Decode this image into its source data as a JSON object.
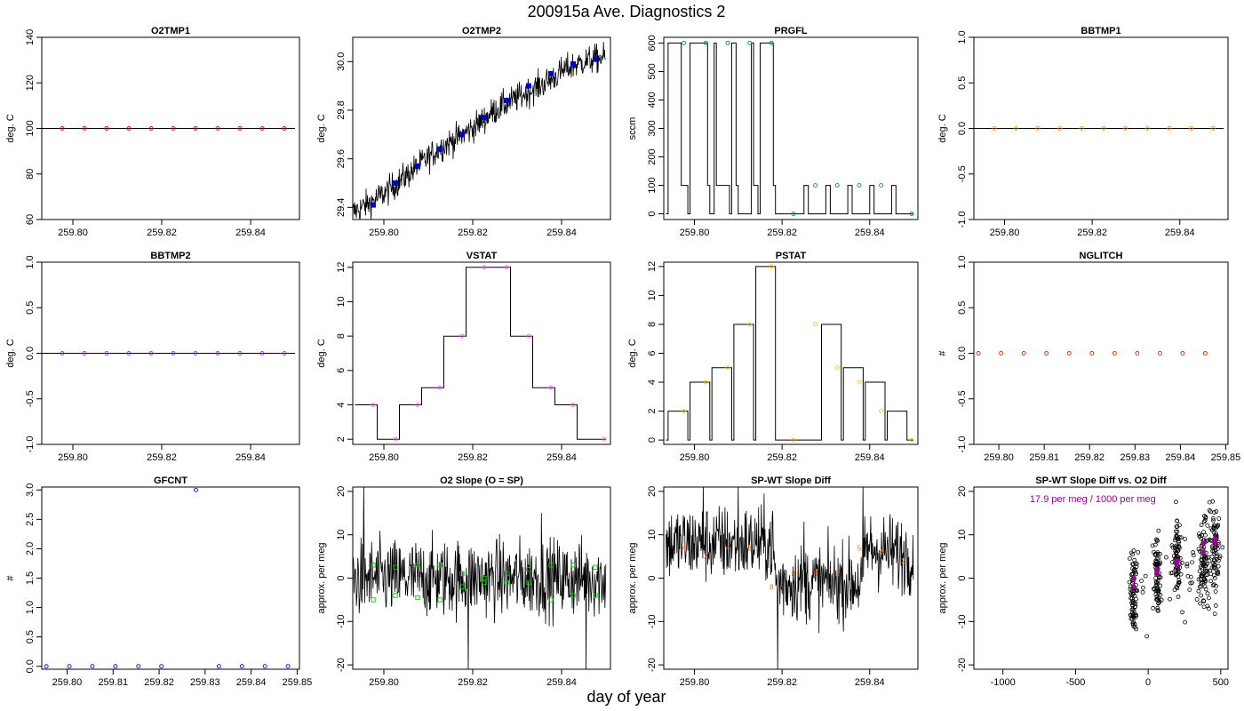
{
  "page": {
    "title": "200915a   Ave. Diagnostics 2",
    "xlabel": "day of year"
  },
  "chart_data": [
    {
      "type": "line",
      "title": "O2TMP1",
      "ylabel": "deg. C",
      "xlim": [
        259.793,
        259.851
      ],
      "ylim": [
        60,
        140
      ],
      "xticks": [
        259.8,
        259.82,
        259.84
      ],
      "xtick_labels": [
        "259.80",
        "259.82",
        "259.84"
      ],
      "yticks": [
        60,
        80,
        100,
        120,
        140
      ],
      "ytick_labels": [
        "60",
        "80",
        "100",
        "120",
        "140"
      ],
      "line_color": "#000000",
      "marker_color": "#ff0000",
      "series": [
        {
          "x": [
            259.793,
            259.85
          ],
          "y": [
            100,
            100
          ]
        }
      ],
      "markers": {
        "x": [
          259.7976,
          259.8026,
          259.8076,
          259.8126,
          259.8176,
          259.8226,
          259.8276,
          259.8326,
          259.8376,
          259.8426,
          259.8476
        ],
        "y": [
          100,
          100,
          100,
          100,
          100,
          100,
          100,
          100,
          100,
          100,
          100
        ]
      }
    },
    {
      "type": "line",
      "title": "O2TMP2",
      "ylabel": "deg. C",
      "xlim": [
        259.793,
        259.851
      ],
      "ylim": [
        29.35,
        30.1
      ],
      "xticks": [
        259.8,
        259.82,
        259.84
      ],
      "xtick_labels": [
        "259.80",
        "259.82",
        "259.84"
      ],
      "yticks": [
        29.4,
        29.6,
        29.8,
        30.0
      ],
      "ytick_labels": [
        "29.4",
        "29.6",
        "29.8",
        "30.0"
      ],
      "line_color": "#000000",
      "marker_color": "#0000cc",
      "series": [
        {
          "x": [
            259.793,
            259.797,
            259.801,
            259.805,
            259.809,
            259.813,
            259.817,
            259.821,
            259.825,
            259.829,
            259.833,
            259.837,
            259.841,
            259.845,
            259.85
          ],
          "y": [
            29.38,
            29.42,
            29.47,
            29.53,
            29.59,
            29.65,
            29.69,
            29.74,
            29.8,
            29.84,
            29.88,
            29.92,
            29.97,
            30.0,
            30.02
          ]
        }
      ],
      "noise": 0.03,
      "markers": {
        "x": [
          259.7976,
          259.8026,
          259.8076,
          259.8126,
          259.8176,
          259.8226,
          259.8276,
          259.8326,
          259.8376,
          259.8426,
          259.8476
        ],
        "y": [
          29.41,
          29.5,
          29.57,
          29.64,
          29.7,
          29.77,
          29.84,
          29.9,
          29.95,
          29.99,
          30.01
        ]
      }
    },
    {
      "type": "step",
      "title": "PRGFL",
      "ylabel": "sccm",
      "xlim": [
        259.793,
        259.851
      ],
      "ylim": [
        -20,
        620
      ],
      "xticks": [
        259.8,
        259.82,
        259.84
      ],
      "xtick_labels": [
        "259.80",
        "259.82",
        "259.84"
      ],
      "yticks": [
        0,
        100,
        200,
        300,
        400,
        500,
        600
      ],
      "ytick_labels": [
        "0",
        "100",
        "200",
        "300",
        "400",
        "500",
        "600"
      ],
      "line_color": "#000000",
      "marker_color": "#009933",
      "series": [
        {
          "x": [
            259.7935,
            259.794,
            259.797,
            259.7985,
            259.799,
            259.803,
            259.8035,
            259.8045,
            259.805,
            259.808,
            259.8085,
            259.8095,
            259.81,
            259.813,
            259.8135,
            259.8145,
            259.815,
            259.818,
            259.8185,
            259.82,
            259.825,
            259.826,
            259.83,
            259.831,
            259.835,
            259.836,
            259.84,
            259.841,
            259.845,
            259.846,
            259.85
          ],
          "y": [
            0,
            600,
            100,
            0,
            600,
            100,
            0,
            600,
            100,
            0,
            600,
            100,
            0,
            600,
            100,
            0,
            600,
            100,
            0,
            0,
            100,
            0,
            100,
            0,
            100,
            0,
            100,
            0,
            100,
            0,
            0
          ]
        }
      ],
      "markers": {
        "x": [
          259.7976,
          259.8026,
          259.8076,
          259.8126,
          259.8176,
          259.8226,
          259.8276,
          259.8326,
          259.8376,
          259.8426,
          259.8496
        ],
        "y": [
          600,
          600,
          600,
          600,
          600,
          0,
          100,
          100,
          100,
          100,
          0
        ]
      }
    },
    {
      "type": "line",
      "title": "BBTMP1",
      "ylabel": "deg. C",
      "xlim": [
        259.793,
        259.851
      ],
      "ylim": [
        -1,
        1
      ],
      "xticks": [
        259.8,
        259.82,
        259.84
      ],
      "xtick_labels": [
        "259.80",
        "259.82",
        "259.84"
      ],
      "yticks": [
        -1.0,
        -0.5,
        0.0,
        0.5,
        1.0
      ],
      "ytick_labels": [
        "-1.0",
        "-0.5",
        "0.0",
        "0.5",
        "1.0"
      ],
      "line_color": "#000000",
      "marker_color": "#ff9900",
      "series": [
        {
          "x": [
            259.793,
            259.85
          ],
          "y": [
            0,
            0
          ]
        }
      ],
      "markers": {
        "x": [
          259.7976,
          259.8026,
          259.8076,
          259.8126,
          259.8176,
          259.8226,
          259.8276,
          259.8326,
          259.8376,
          259.8426,
          259.8476
        ],
        "y": [
          0,
          0,
          0,
          0,
          0,
          0,
          0,
          0,
          0,
          0,
          0
        ]
      }
    },
    {
      "type": "line",
      "title": "BBTMP2",
      "ylabel": "deg. C",
      "xlim": [
        259.793,
        259.851
      ],
      "ylim": [
        -1,
        1
      ],
      "xticks": [
        259.8,
        259.82,
        259.84
      ],
      "xtick_labels": [
        "259.80",
        "259.82",
        "259.84"
      ],
      "yticks": [
        -1.0,
        -0.5,
        0.0,
        0.5,
        1.0
      ],
      "ytick_labels": [
        "-1.0",
        "-0.5",
        "0.0",
        "0.5",
        "1.0"
      ],
      "line_color": "#000000",
      "marker_color": "#9933ff",
      "series": [
        {
          "x": [
            259.793,
            259.85
          ],
          "y": [
            0,
            0
          ]
        }
      ],
      "markers": {
        "x": [
          259.7976,
          259.8026,
          259.8076,
          259.8126,
          259.8176,
          259.8226,
          259.8276,
          259.8326,
          259.8376,
          259.8426,
          259.8476
        ],
        "y": [
          0,
          0,
          0,
          0,
          0,
          0,
          0,
          0,
          0,
          0,
          0
        ]
      }
    },
    {
      "type": "step",
      "title": "VSTAT",
      "ylabel": "deg. C",
      "xlim": [
        259.793,
        259.851
      ],
      "ylim": [
        1.7,
        12.3
      ],
      "xticks": [
        259.8,
        259.82,
        259.84
      ],
      "xtick_labels": [
        "259.80",
        "259.82",
        "259.84"
      ],
      "yticks": [
        2,
        4,
        6,
        8,
        10,
        12
      ],
      "ytick_labels": [
        "2",
        "4",
        "6",
        "8",
        "10",
        "12"
      ],
      "line_color": "#000000",
      "marker_color": "#ff66ff",
      "series": [
        {
          "x": [
            259.7935,
            259.7985,
            259.8035,
            259.8085,
            259.8135,
            259.8185,
            259.8235,
            259.8285,
            259.8335,
            259.8385,
            259.8435,
            259.8485,
            259.85
          ],
          "y": [
            4,
            2,
            4,
            5,
            8,
            12,
            12,
            8,
            5,
            4,
            2,
            2,
            2
          ]
        }
      ],
      "markers": {
        "x": [
          259.7976,
          259.8026,
          259.8076,
          259.8126,
          259.8176,
          259.8226,
          259.8276,
          259.8326,
          259.8376,
          259.8426,
          259.8496
        ],
        "y": [
          4,
          2,
          4,
          5,
          8,
          12,
          12,
          8,
          5,
          4,
          2
        ]
      }
    },
    {
      "type": "step",
      "title": "PSTAT",
      "ylabel": "deg. C",
      "xlim": [
        259.793,
        259.851
      ],
      "ylim": [
        -0.3,
        12.3
      ],
      "xticks": [
        259.8,
        259.82,
        259.84
      ],
      "xtick_labels": [
        "259.80",
        "259.82",
        "259.84"
      ],
      "yticks": [
        0,
        2,
        4,
        6,
        8,
        10,
        12
      ],
      "ytick_labels": [
        "0",
        "2",
        "4",
        "6",
        "8",
        "10",
        "12"
      ],
      "line_color": "#000000",
      "marker_color": "#ffcc00",
      "series": [
        {
          "x": [
            259.7935,
            259.794,
            259.7985,
            259.799,
            259.8035,
            259.804,
            259.8085,
            259.809,
            259.8135,
            259.814,
            259.8185,
            259.819,
            259.8235,
            259.824,
            259.8285,
            259.829,
            259.8335,
            259.834,
            259.8385,
            259.839,
            259.8435,
            259.844,
            259.8485,
            259.85
          ],
          "y": [
            0,
            2,
            0,
            4,
            0,
            5,
            0,
            8,
            0,
            12,
            0,
            0,
            0,
            0,
            0,
            8,
            0,
            5,
            0,
            4,
            0,
            2,
            0,
            0
          ]
        }
      ],
      "markers": {
        "x": [
          259.7976,
          259.8026,
          259.8076,
          259.8126,
          259.8176,
          259.8226,
          259.8276,
          259.8326,
          259.8376,
          259.8426,
          259.8496
        ],
        "y": [
          2,
          4,
          5,
          8,
          12,
          0,
          8,
          5,
          4,
          2,
          0
        ]
      }
    },
    {
      "type": "scatter",
      "title": "NGLITCH",
      "ylabel": "#",
      "xlim": [
        259.7945,
        259.8505
      ],
      "ylim": [
        -1,
        1
      ],
      "xticks": [
        259.8,
        259.81,
        259.82,
        259.83,
        259.84,
        259.85
      ],
      "xtick_labels": [
        "259.80",
        "259.81",
        "259.82",
        "259.83",
        "259.84",
        "259.85"
      ],
      "yticks": [
        -1.0,
        -0.5,
        0.0,
        0.5,
        1.0
      ],
      "ytick_labels": [
        "-1.0",
        "-0.5",
        "0.0",
        "0.5",
        "1.0"
      ],
      "marker_color": "#cc3300",
      "markers": {
        "x": [
          259.7955,
          259.8005,
          259.8055,
          259.8105,
          259.8155,
          259.8205,
          259.8255,
          259.8305,
          259.8355,
          259.8405,
          259.8455
        ],
        "y": [
          0,
          0,
          0,
          0,
          0,
          0,
          0,
          0,
          0,
          0,
          0
        ]
      }
    },
    {
      "type": "scatter",
      "title": "GFCNT",
      "ylabel": "#",
      "xlim": [
        259.7945,
        259.8505
      ],
      "ylim": [
        -0.05,
        3.05
      ],
      "xticks": [
        259.8,
        259.81,
        259.82,
        259.83,
        259.84,
        259.85
      ],
      "xtick_labels": [
        "259.80",
        "259.81",
        "259.82",
        "259.83",
        "259.84",
        "259.85"
      ],
      "yticks": [
        0.0,
        0.5,
        1.0,
        1.5,
        2.0,
        2.5,
        3.0
      ],
      "ytick_labels": [
        "0.0",
        "0.5",
        "1.0",
        "1.5",
        "2.0",
        "2.5",
        "3.0"
      ],
      "marker_color": "#0000ff",
      "markers": {
        "x": [
          259.7955,
          259.8005,
          259.8055,
          259.8105,
          259.8155,
          259.8205,
          259.828,
          259.833,
          259.838,
          259.843,
          259.848
        ],
        "y": [
          0,
          0,
          0,
          0,
          0,
          0,
          3,
          0,
          0,
          0,
          0
        ]
      }
    },
    {
      "type": "line",
      "title": "O2 Slope (O = SP)",
      "ylabel": "approx. per meg",
      "xlim": [
        259.793,
        259.851
      ],
      "ylim": [
        -21,
        21
      ],
      "xticks": [
        259.8,
        259.82,
        259.84
      ],
      "xtick_labels": [
        "259.80",
        "259.82",
        "259.84"
      ],
      "yticks": [
        -20,
        -10,
        0,
        10,
        20
      ],
      "ytick_labels": [
        "-20",
        "-10",
        "0",
        "10",
        "20"
      ],
      "line_color": "#000000",
      "marker_color": "#00cc00",
      "series": [
        {
          "x": [
            259.793,
            259.85
          ],
          "y": [
            0,
            0
          ]
        }
      ],
      "noise": 4.5,
      "spikes": [
        {
          "x": 259.7955,
          "y": 22
        },
        {
          "x": 259.819,
          "y": -22
        },
        {
          "x": 259.8455,
          "y": -22
        },
        {
          "x": 259.8355,
          "y": 15
        }
      ],
      "markers": {
        "x": [
          259.7976,
          259.7976,
          259.8026,
          259.8026,
          259.8076,
          259.8076,
          259.8126,
          259.8126,
          259.8176,
          259.8176,
          259.8226,
          259.8226,
          259.8276,
          259.8276,
          259.8326,
          259.8326,
          259.8376,
          259.8376,
          259.8426,
          259.8426,
          259.8476,
          259.8476
        ],
        "y": [
          3,
          -5,
          2.5,
          -4,
          3,
          -4.5,
          3,
          -5,
          1,
          -2,
          0,
          -1,
          1,
          -1,
          2,
          -1,
          3,
          -5,
          3,
          -4,
          2.5,
          -4
        ]
      }
    },
    {
      "type": "line",
      "title": "SP-WT Slope Diff",
      "ylabel": "approx. per meg",
      "xlim": [
        259.793,
        259.851
      ],
      "ylim": [
        -21,
        21
      ],
      "xticks": [
        259.8,
        259.82,
        259.84
      ],
      "xtick_labels": [
        "259.80",
        "259.82",
        "259.84"
      ],
      "yticks": [
        -20,
        -10,
        0,
        10,
        20
      ],
      "ytick_labels": [
        "-20",
        "-10",
        "0",
        "10",
        "20"
      ],
      "line_color": "#000000",
      "marker_color": "#ff6600",
      "series": [
        {
          "x": [
            259.7935,
            259.818,
            259.8185,
            259.8385,
            259.839,
            259.85
          ],
          "y": [
            8,
            8,
            -1,
            -1,
            7,
            5
          ]
        }
      ],
      "noise": 4.5,
      "spikes": [
        {
          "x": 259.802,
          "y": 22
        },
        {
          "x": 259.81,
          "y": 22
        },
        {
          "x": 259.819,
          "y": -22
        },
        {
          "x": 259.8385,
          "y": 22
        },
        {
          "x": 259.825,
          "y": 13
        }
      ],
      "marker_labels": {
        "x": [
          259.7976,
          259.8026,
          259.8076,
          259.8126,
          259.8176,
          259.8226,
          259.8276,
          259.8326,
          259.8376,
          259.8426,
          259.8476
        ],
        "y": [
          7,
          5,
          7,
          7,
          -2,
          1,
          1,
          1,
          7,
          6,
          4
        ],
        "text": [
          "4",
          "2",
          "4",
          "3",
          "8",
          "8",
          "8",
          "8",
          "5",
          "4",
          "2"
        ]
      }
    },
    {
      "type": "scatter",
      "title": "SP-WT Slope Diff vs. O2 Diff",
      "ylabel": "approx. per meg",
      "annotation": "17.9 per meg / 1000 per meg",
      "annotation_color": "#990099",
      "xlim": [
        -1200,
        550
      ],
      "ylim": [
        -21,
        21
      ],
      "xticks": [
        -1000,
        -500,
        0,
        500
      ],
      "xtick_labels": [
        "-1000",
        "-500",
        "0",
        "500"
      ],
      "yticks": [
        -20,
        -10,
        0,
        10,
        20
      ],
      "ytick_labels": [
        "-20",
        "-10",
        "0",
        "10",
        "20"
      ],
      "marker_color": "#000000",
      "fit_color": "#990099",
      "clusters": [
        {
          "x": -100,
          "y": -3,
          "spread": 22,
          "ysd": 5
        },
        {
          "x": 60,
          "y": 0,
          "spread": 22,
          "ysd": 5
        },
        {
          "x": 200,
          "y": 5,
          "spread": 22,
          "ysd": 5
        },
        {
          "x": 380,
          "y": 5,
          "spread": 35,
          "ysd": 6
        },
        {
          "x": 460,
          "y": 7,
          "spread": 35,
          "ysd": 6
        }
      ],
      "fit_points": {
        "x": [
          -100,
          60,
          200,
          380,
          460,
          -100,
          60,
          200,
          380,
          460
        ],
        "y": [
          0,
          2,
          4,
          6,
          9,
          -2,
          1,
          3,
          8,
          8
        ]
      }
    }
  ]
}
